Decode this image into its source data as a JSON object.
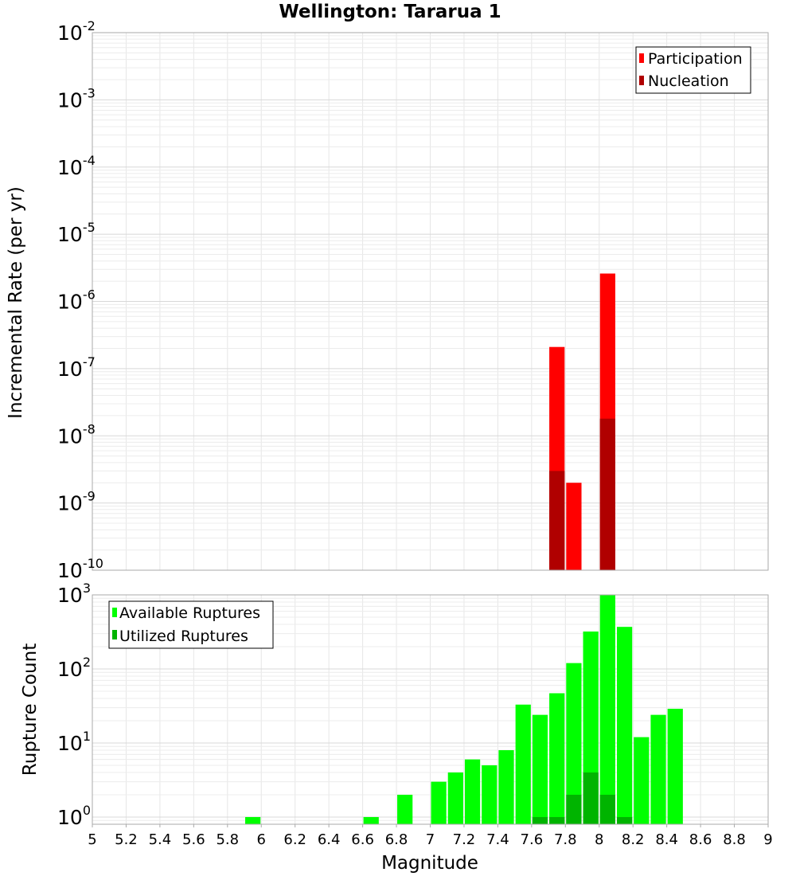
{
  "chart_data": [
    {
      "type": "bar",
      "title": "Wellington: Tararua 1",
      "xlabel": "",
      "ylabel": "Incremental Rate (per yr)",
      "yscale": "log",
      "ylim": [
        1e-10,
        0.01
      ],
      "ytick_labels": [
        {
          "base": "10",
          "exp": "-2"
        },
        {
          "base": "10",
          "exp": "-3"
        },
        {
          "base": "10",
          "exp": "-4"
        },
        {
          "base": "10",
          "exp": "-5"
        },
        {
          "base": "10",
          "exp": "-6"
        },
        {
          "base": "10",
          "exp": "-7"
        },
        {
          "base": "10",
          "exp": "-8"
        },
        {
          "base": "10",
          "exp": "-9"
        },
        {
          "base": "10",
          "exp": "-10"
        }
      ],
      "xlim": [
        5,
        9
      ],
      "bar_width": 0.1,
      "grid": true,
      "legend_position": "top-right",
      "series": [
        {
          "name": "Participation",
          "color": "#ff0000",
          "points": [
            {
              "x": 7.75,
              "y": 2.1e-07
            },
            {
              "x": 7.85,
              "y": 2e-09
            },
            {
              "x": 8.05,
              "y": 2.6e-06
            }
          ]
        },
        {
          "name": "Nucleation",
          "color": "#b00000",
          "points": [
            {
              "x": 7.75,
              "y": 3e-09
            },
            {
              "x": 8.05,
              "y": 1.8e-08
            }
          ]
        }
      ]
    },
    {
      "type": "bar",
      "title": "",
      "xlabel": "Magnitude",
      "ylabel": "Rupture Count",
      "yscale": "log",
      "ylim": [
        0.8,
        1000
      ],
      "ytick_labels": [
        {
          "base": "10",
          "exp": "3"
        },
        {
          "base": "10",
          "exp": "2"
        },
        {
          "base": "10",
          "exp": "1"
        },
        {
          "base": "10",
          "exp": "0"
        }
      ],
      "xlim": [
        5,
        9
      ],
      "xticks": [
        "5",
        "5.2",
        "5.4",
        "5.6",
        "5.8",
        "6",
        "6.2",
        "6.4",
        "6.6",
        "6.8",
        "7",
        "7.2",
        "7.4",
        "7.6",
        "7.8",
        "8",
        "8.2",
        "8.4",
        "8.6",
        "8.8",
        "9"
      ],
      "bar_width": 0.1,
      "grid": true,
      "legend_position": "top-left",
      "series": [
        {
          "name": "Available Ruptures",
          "color": "#00ff00",
          "points": [
            {
              "x": 5.95,
              "y": 1
            },
            {
              "x": 6.65,
              "y": 1
            },
            {
              "x": 6.85,
              "y": 2
            },
            {
              "x": 7.05,
              "y": 3
            },
            {
              "x": 7.15,
              "y": 4
            },
            {
              "x": 7.25,
              "y": 6
            },
            {
              "x": 7.35,
              "y": 5
            },
            {
              "x": 7.45,
              "y": 8
            },
            {
              "x": 7.55,
              "y": 33
            },
            {
              "x": 7.65,
              "y": 24
            },
            {
              "x": 7.75,
              "y": 47
            },
            {
              "x": 7.85,
              "y": 120
            },
            {
              "x": 7.95,
              "y": 320
            },
            {
              "x": 8.05,
              "y": 1000
            },
            {
              "x": 8.15,
              "y": 370
            },
            {
              "x": 8.25,
              "y": 12
            },
            {
              "x": 8.35,
              "y": 24
            },
            {
              "x": 8.45,
              "y": 29
            }
          ]
        },
        {
          "name": "Utilized Ruptures",
          "color": "#00b400",
          "points": [
            {
              "x": 7.65,
              "y": 1
            },
            {
              "x": 7.75,
              "y": 1
            },
            {
              "x": 7.85,
              "y": 2
            },
            {
              "x": 7.95,
              "y": 4
            },
            {
              "x": 8.05,
              "y": 2
            },
            {
              "x": 8.15,
              "y": 1
            }
          ]
        }
      ]
    }
  ]
}
